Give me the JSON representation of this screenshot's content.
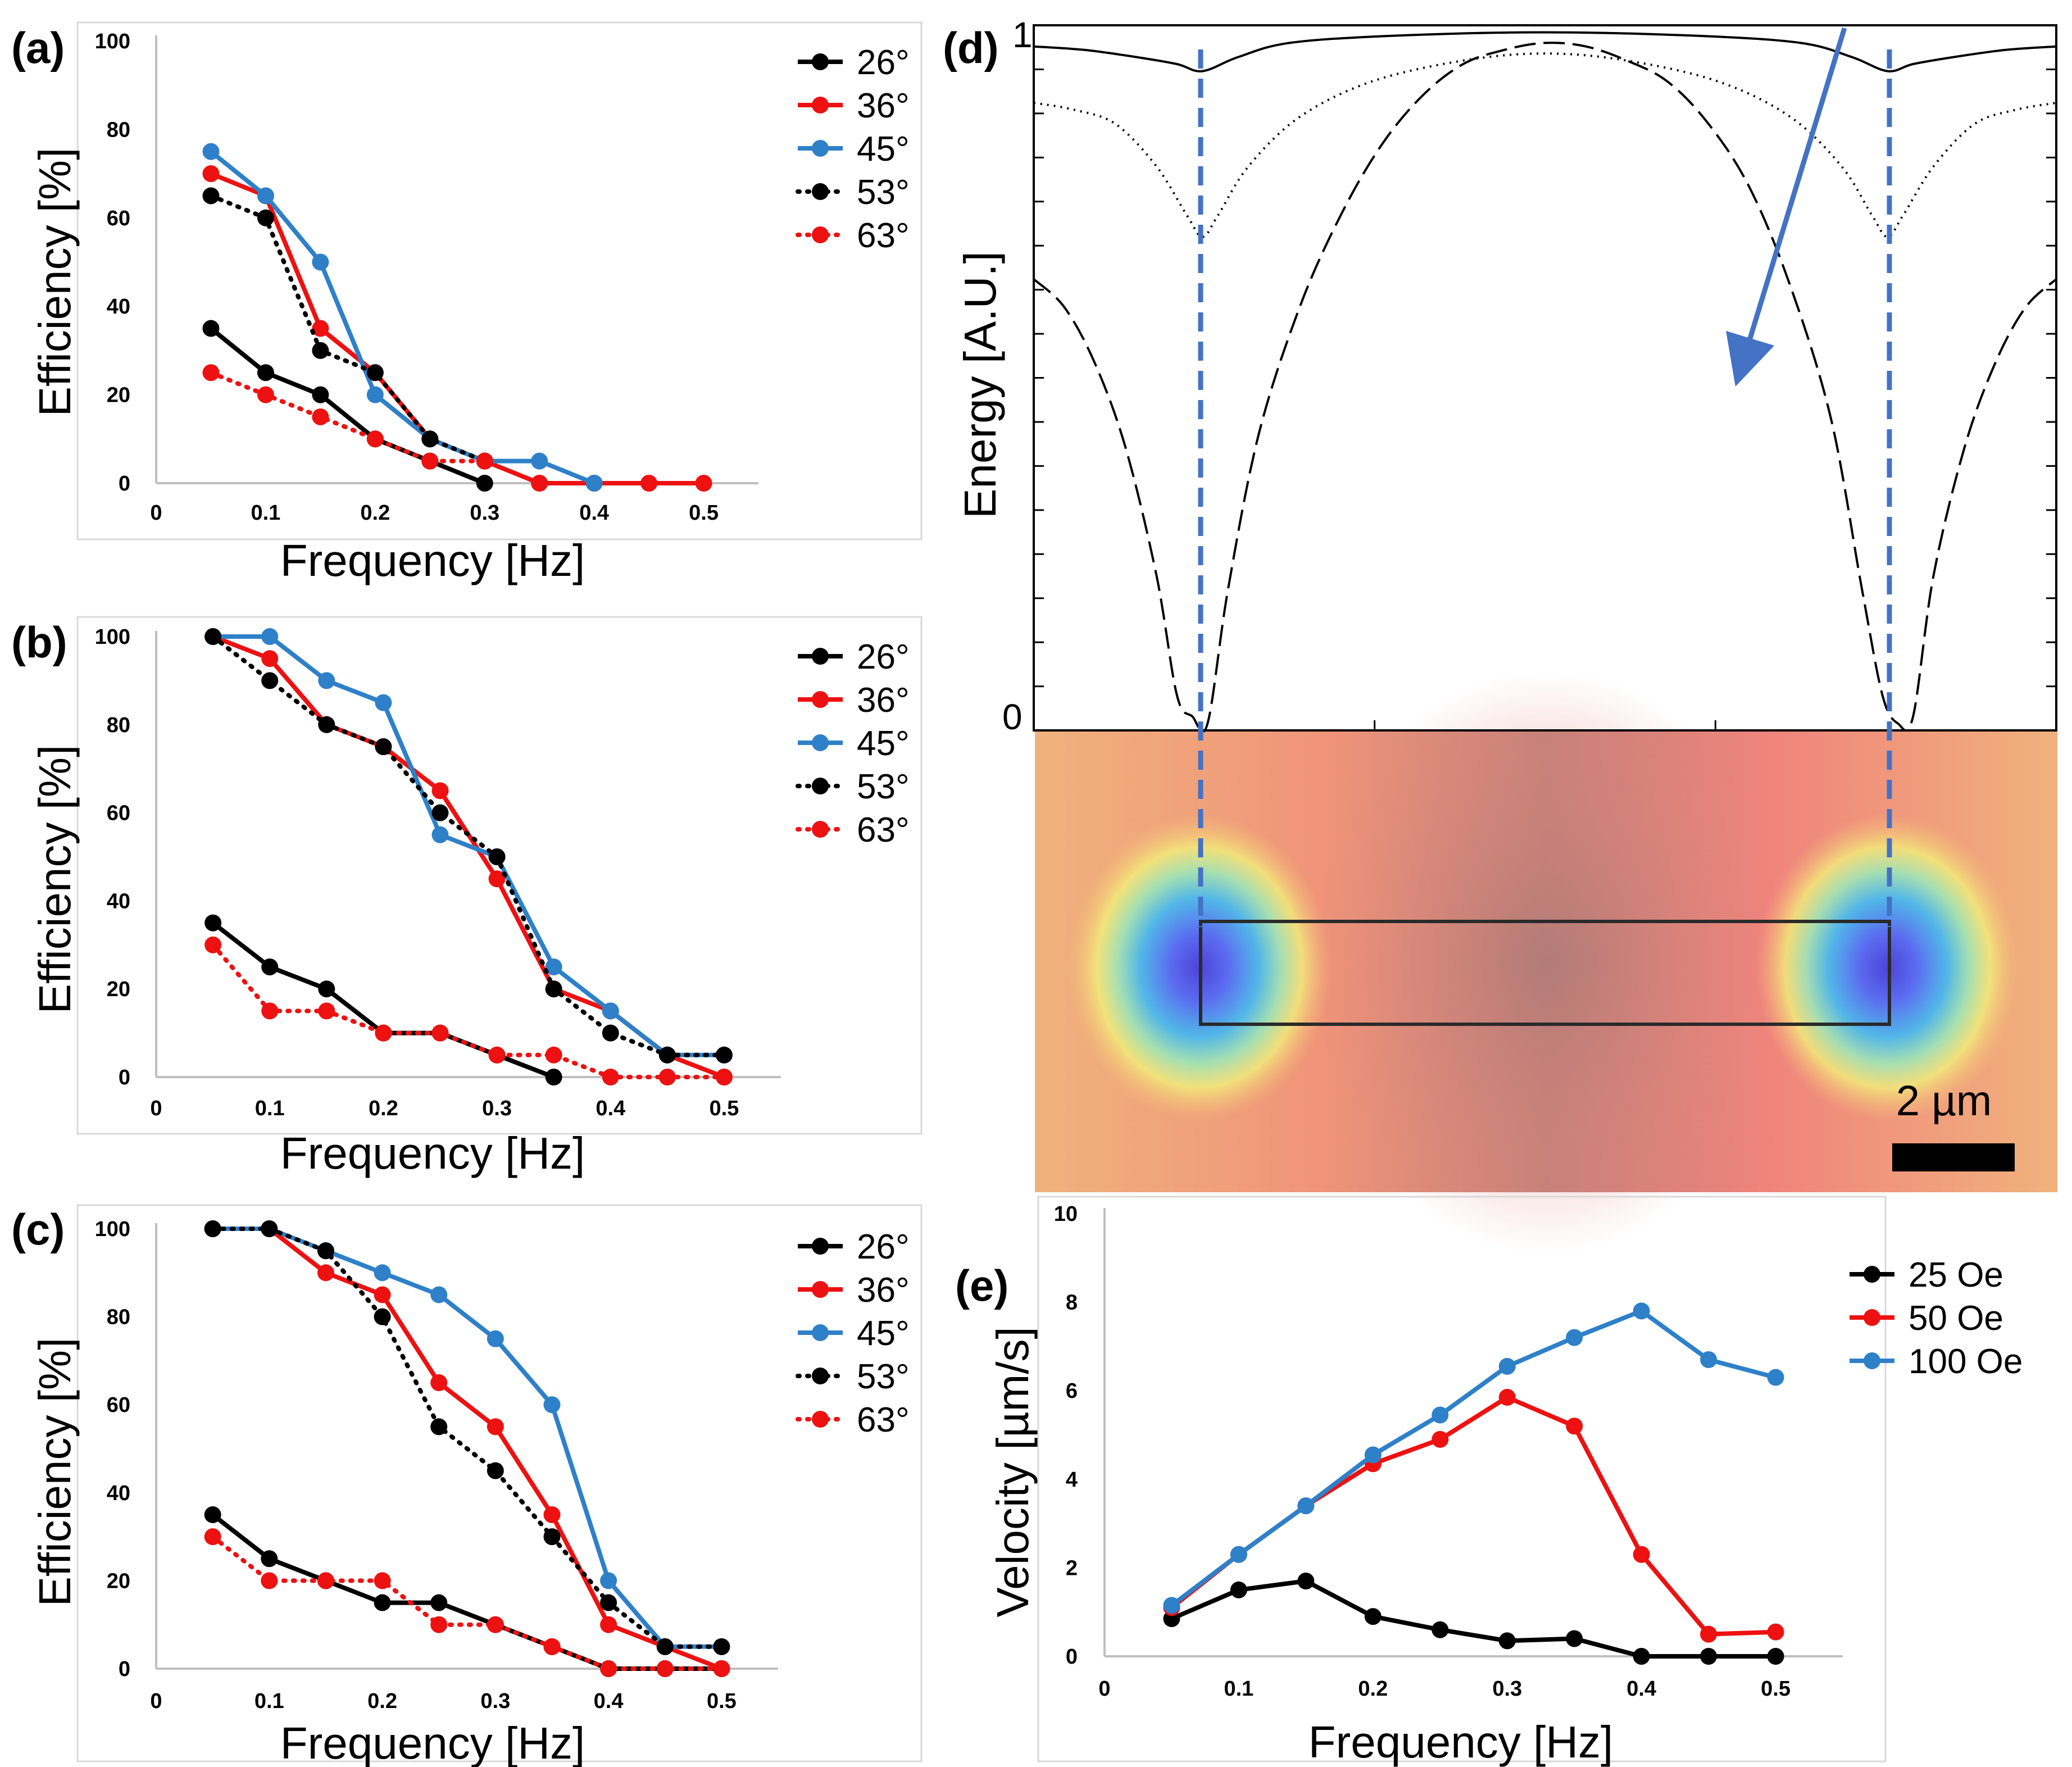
{
  "colors": {
    "black": "#000000",
    "red": "#ee1111",
    "blue": "#2e80c8",
    "guide": "#4472c4",
    "panel_border": "#d9d9d9",
    "axis": "#bfbfbf"
  },
  "chart_data": [
    {
      "panel": "(a)",
      "type": "line",
      "xlabel": "Frequency [Hz]",
      "ylabel": "Efficiency [%]",
      "xlim": [
        0,
        0.55
      ],
      "ylim": [
        0,
        100
      ],
      "xticks": [
        "0",
        "0.1",
        "0.2",
        "0.3",
        "0.4",
        "0.5"
      ],
      "yticks": [
        "0",
        "20",
        "40",
        "60",
        "80",
        "100"
      ],
      "series": [
        {
          "name": "26°",
          "color": "#000000",
          "dash": false,
          "x": [
            0.05,
            0.1,
            0.15,
            0.2,
            0.25,
            0.3
          ],
          "values": [
            35,
            25,
            20,
            10,
            5,
            0
          ]
        },
        {
          "name": "36°",
          "color": "#ee1111",
          "dash": false,
          "x": [
            0.05,
            0.1,
            0.15,
            0.2,
            0.25,
            0.3,
            0.35,
            0.4,
            0.45,
            0.5
          ],
          "values": [
            70,
            65,
            35,
            25,
            10,
            5,
            0,
            0,
            0,
            0
          ]
        },
        {
          "name": "45°",
          "color": "#2e80c8",
          "dash": false,
          "x": [
            0.05,
            0.1,
            0.15,
            0.2,
            0.25,
            0.3,
            0.35,
            0.4
          ],
          "values": [
            75,
            65,
            50,
            20,
            10,
            5,
            5,
            0
          ]
        },
        {
          "name": "53°",
          "color": "#000000",
          "dash": true,
          "x": [
            0.05,
            0.1,
            0.15,
            0.2,
            0.25,
            0.3
          ],
          "values": [
            65,
            60,
            30,
            25,
            10,
            5
          ]
        },
        {
          "name": "63°",
          "color": "#ee1111",
          "dash": true,
          "x": [
            0.05,
            0.1,
            0.15,
            0.2,
            0.25,
            0.3
          ],
          "values": [
            25,
            20,
            15,
            10,
            5,
            5
          ]
        }
      ]
    },
    {
      "panel": "(b)",
      "type": "line",
      "xlabel": "Frequency [Hz]",
      "ylabel": "Efficiency [%]",
      "xlim": [
        0,
        0.55
      ],
      "ylim": [
        0,
        100
      ],
      "xticks": [
        "0",
        "0.1",
        "0.2",
        "0.3",
        "0.4",
        "0.5"
      ],
      "yticks": [
        "0",
        "20",
        "40",
        "60",
        "80",
        "100"
      ],
      "series": [
        {
          "name": "26°",
          "color": "#000000",
          "dash": false,
          "x": [
            0.05,
            0.1,
            0.15,
            0.2,
            0.25,
            0.3,
            0.35
          ],
          "values": [
            35,
            25,
            20,
            10,
            10,
            5,
            0
          ]
        },
        {
          "name": "36°",
          "color": "#ee1111",
          "dash": false,
          "x": [
            0.05,
            0.1,
            0.15,
            0.2,
            0.25,
            0.3,
            0.35,
            0.4,
            0.45,
            0.5
          ],
          "values": [
            100,
            95,
            80,
            75,
            65,
            45,
            20,
            15,
            5,
            0
          ]
        },
        {
          "name": "45°",
          "color": "#2e80c8",
          "dash": false,
          "x": [
            0.05,
            0.1,
            0.15,
            0.2,
            0.25,
            0.3,
            0.35,
            0.4,
            0.45,
            0.5
          ],
          "values": [
            100,
            100,
            90,
            85,
            55,
            50,
            25,
            15,
            5,
            5
          ]
        },
        {
          "name": "53°",
          "color": "#000000",
          "dash": true,
          "x": [
            0.05,
            0.1,
            0.15,
            0.2,
            0.25,
            0.3,
            0.35,
            0.4,
            0.45,
            0.5
          ],
          "values": [
            100,
            90,
            80,
            75,
            60,
            50,
            20,
            10,
            5,
            5
          ]
        },
        {
          "name": "63°",
          "color": "#ee1111",
          "dash": true,
          "x": [
            0.05,
            0.1,
            0.15,
            0.2,
            0.25,
            0.3,
            0.35,
            0.4,
            0.45,
            0.5
          ],
          "values": [
            30,
            15,
            15,
            10,
            10,
            5,
            5,
            0,
            0,
            0
          ]
        }
      ]
    },
    {
      "panel": "(c)",
      "type": "line",
      "xlabel": "Frequency [Hz]",
      "ylabel": "Efficiency [%]",
      "xlim": [
        0,
        0.55
      ],
      "ylim": [
        0,
        100
      ],
      "xticks": [
        "0",
        "0.1",
        "0.2",
        "0.3",
        "0.4",
        "0.5"
      ],
      "yticks": [
        "0",
        "20",
        "40",
        "60",
        "80",
        "100"
      ],
      "series": [
        {
          "name": "26°",
          "color": "#000000",
          "dash": false,
          "x": [
            0.05,
            0.1,
            0.15,
            0.2,
            0.25,
            0.3,
            0.35,
            0.4,
            0.45,
            0.5
          ],
          "values": [
            35,
            25,
            20,
            15,
            15,
            10,
            5,
            0,
            0,
            0
          ]
        },
        {
          "name": "36°",
          "color": "#ee1111",
          "dash": false,
          "x": [
            0.05,
            0.1,
            0.15,
            0.2,
            0.25,
            0.3,
            0.35,
            0.4,
            0.45,
            0.5
          ],
          "values": [
            100,
            100,
            90,
            85,
            65,
            55,
            35,
            10,
            5,
            0
          ]
        },
        {
          "name": "45°",
          "color": "#2e80c8",
          "dash": false,
          "x": [
            0.05,
            0.1,
            0.15,
            0.2,
            0.25,
            0.3,
            0.35,
            0.4,
            0.45,
            0.5
          ],
          "values": [
            100,
            100,
            95,
            90,
            85,
            75,
            60,
            20,
            5,
            5
          ]
        },
        {
          "name": "53°",
          "color": "#000000",
          "dash": true,
          "x": [
            0.05,
            0.1,
            0.15,
            0.2,
            0.25,
            0.3,
            0.35,
            0.4,
            0.45,
            0.5
          ],
          "values": [
            100,
            100,
            95,
            80,
            55,
            45,
            30,
            15,
            5,
            5
          ]
        },
        {
          "name": "63°",
          "color": "#ee1111",
          "dash": true,
          "x": [
            0.05,
            0.1,
            0.15,
            0.2,
            0.25,
            0.3,
            0.35,
            0.4,
            0.45,
            0.5
          ],
          "values": [
            30,
            20,
            20,
            20,
            10,
            10,
            5,
            0,
            0,
            0
          ]
        }
      ]
    },
    {
      "panel": "(d)",
      "type": "line",
      "ylabel": "Energy [A.U.]",
      "yticks": [
        "0",
        "1"
      ],
      "scalebar_label": "2 µm",
      "series": [
        {
          "name": "solid",
          "style": "solid",
          "x": [
            0.0,
            0.05,
            0.1,
            0.14,
            0.165,
            0.2,
            0.25,
            0.35,
            0.5,
            0.65,
            0.75,
            0.8,
            0.835,
            0.86,
            0.9,
            0.95,
            1.0
          ],
          "values": [
            0.97,
            0.965,
            0.955,
            0.945,
            0.935,
            0.955,
            0.975,
            0.985,
            0.99,
            0.985,
            0.975,
            0.955,
            0.935,
            0.945,
            0.955,
            0.965,
            0.97
          ]
        },
        {
          "name": "dotted",
          "style": "dotted",
          "x": [
            0.0,
            0.04,
            0.08,
            0.12,
            0.15,
            0.165,
            0.18,
            0.21,
            0.26,
            0.33,
            0.42,
            0.5,
            0.58,
            0.67,
            0.74,
            0.79,
            0.82,
            0.835,
            0.85,
            0.88,
            0.92,
            0.96,
            1.0
          ],
          "values": [
            0.89,
            0.88,
            0.86,
            0.8,
            0.73,
            0.7,
            0.73,
            0.8,
            0.87,
            0.92,
            0.95,
            0.96,
            0.95,
            0.92,
            0.87,
            0.8,
            0.73,
            0.7,
            0.73,
            0.8,
            0.86,
            0.88,
            0.89
          ]
        },
        {
          "name": "dashed",
          "style": "dashed",
          "x": [
            0.0,
            0.03,
            0.06,
            0.09,
            0.12,
            0.14,
            0.155,
            0.17,
            0.19,
            0.22,
            0.26,
            0.3,
            0.34,
            0.38,
            0.42,
            0.46,
            0.5,
            0.54,
            0.58,
            0.62,
            0.66,
            0.7,
            0.74,
            0.78,
            0.81,
            0.83,
            0.845,
            0.86,
            0.88,
            0.91,
            0.94,
            0.97,
            1.0
          ],
          "values": [
            0.64,
            0.6,
            0.52,
            0.4,
            0.22,
            0.05,
            0.02,
            0.01,
            0.2,
            0.42,
            0.6,
            0.73,
            0.83,
            0.9,
            0.945,
            0.965,
            0.975,
            0.97,
            0.95,
            0.92,
            0.86,
            0.77,
            0.63,
            0.44,
            0.2,
            0.05,
            0.01,
            0.02,
            0.22,
            0.4,
            0.52,
            0.6,
            0.64
          ]
        }
      ]
    },
    {
      "panel": "(e)",
      "type": "line",
      "xlabel": "Frequency [Hz]",
      "ylabel": "Velocity [µm/s]",
      "xlim": [
        0,
        0.55
      ],
      "ylim": [
        0,
        10
      ],
      "xticks": [
        "0",
        "0.1",
        "0.2",
        "0.3",
        "0.4",
        "0.5"
      ],
      "yticks": [
        "0",
        "2",
        "4",
        "6",
        "8",
        "10"
      ],
      "series": [
        {
          "name": "25 Oe",
          "color": "#000000",
          "dash": false,
          "x": [
            0.05,
            0.1,
            0.15,
            0.2,
            0.25,
            0.3,
            0.35,
            0.4,
            0.45,
            0.5
          ],
          "values": [
            0.85,
            1.5,
            1.7,
            0.9,
            0.6,
            0.35,
            0.4,
            0.0,
            0.0,
            0.0
          ]
        },
        {
          "name": "50 Oe",
          "color": "#ee1111",
          "dash": false,
          "x": [
            0.05,
            0.1,
            0.15,
            0.2,
            0.25,
            0.3,
            0.35,
            0.4,
            0.45,
            0.5
          ],
          "values": [
            1.1,
            2.3,
            3.4,
            4.35,
            4.9,
            5.85,
            5.2,
            2.3,
            0.5,
            0.55
          ]
        },
        {
          "name": "100 Oe",
          "color": "#2e80c8",
          "dash": false,
          "x": [
            0.05,
            0.1,
            0.15,
            0.2,
            0.25,
            0.3,
            0.35,
            0.4,
            0.45,
            0.5
          ],
          "values": [
            1.15,
            2.3,
            3.4,
            4.55,
            5.45,
            6.55,
            7.2,
            7.8,
            6.7,
            6.3
          ]
        }
      ]
    }
  ]
}
